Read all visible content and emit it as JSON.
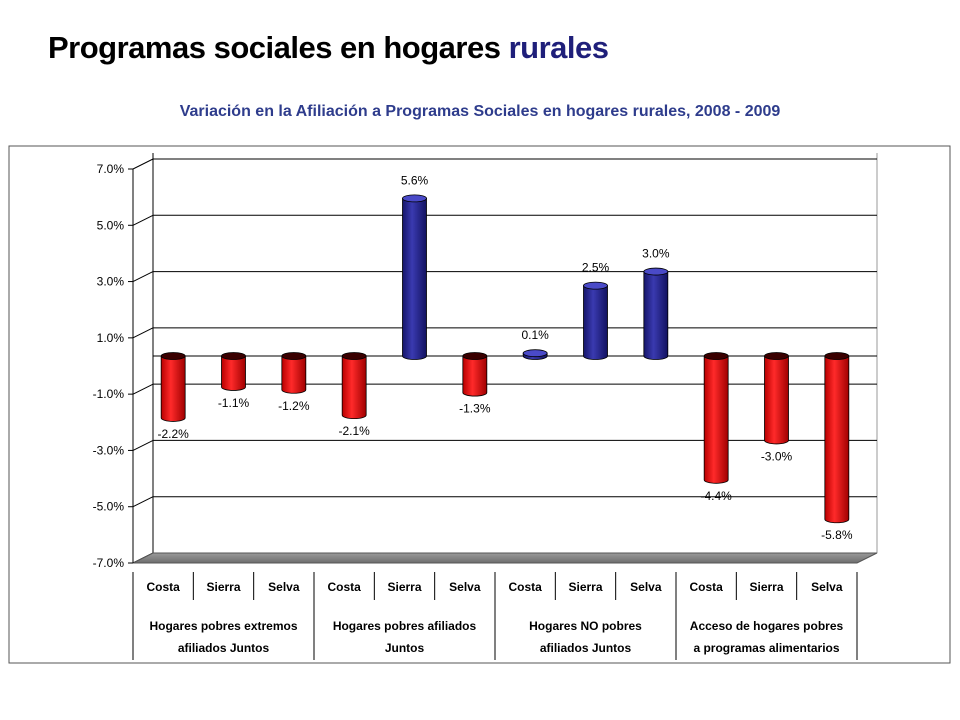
{
  "header": {
    "title_main": "Programas sociales en hogares",
    "title_accent": "rurales",
    "subtitle": "Variación en la Afiliación a Programas Sociales en hogares rurales, 2008 - 2009"
  },
  "colors": {
    "positive": "#23238f",
    "negative": "#e00000",
    "accent_title": "#1f1f7a",
    "subtitle": "#2e3c8c"
  },
  "chart_data": {
    "type": "bar",
    "title": "Variación en la Afiliación a Programas Sociales en hogares rurales, 2008 - 2009",
    "xlabel": "",
    "ylabel": "",
    "ylim": [
      -7.0,
      7.0
    ],
    "yticks": [
      7.0,
      5.0,
      3.0,
      1.0,
      -1.0,
      -3.0,
      -5.0,
      -7.0
    ],
    "ytick_labels": [
      "7.0%",
      "5.0%",
      "3.0%",
      "1.0%",
      "-1.0%",
      "-3.0%",
      "-5.0%",
      "-7.0%"
    ],
    "grid": true,
    "categories": [
      "Costa",
      "Sierra",
      "Selva",
      "Costa",
      "Sierra",
      "Selva",
      "Costa",
      "Sierra",
      "Selva",
      "Costa",
      "Sierra",
      "Selva"
    ],
    "values": [
      -2.2,
      -1.1,
      -1.2,
      -2.1,
      5.6,
      -1.3,
      0.1,
      2.5,
      3.0,
      -4.4,
      -3.0,
      -5.8
    ],
    "data_labels": [
      "-2.2%",
      "-1.1%",
      "-1.2%",
      "-2.1%",
      "5.6%",
      "-1.3%",
      "0.1%",
      "2.5%",
      "3.0%",
      "-4.4%",
      "-3.0%",
      "-5.8%"
    ],
    "groups": [
      {
        "lines": [
          "Hogares pobres extremos",
          "afiliados Juntos"
        ]
      },
      {
        "lines": [
          "Hogares pobres afiliados",
          "Juntos"
        ]
      },
      {
        "lines": [
          "Hogares NO pobres",
          "afiliados Juntos"
        ]
      },
      {
        "lines": [
          "Acceso de hogares pobres",
          "a programas alimentarios"
        ]
      }
    ]
  }
}
